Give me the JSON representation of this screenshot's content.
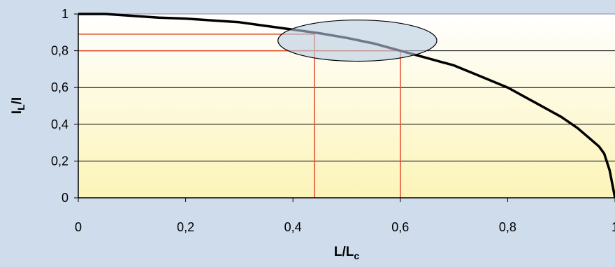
{
  "chart_data": {
    "type": "line",
    "title": "",
    "xlabel": {
      "main": "L/L",
      "sub": "c"
    },
    "ylabel": {
      "main": "I",
      "sub": "L",
      "suffix": "/I"
    },
    "xlim": [
      0,
      1
    ],
    "ylim": [
      0,
      1
    ],
    "x_ticks": [
      "0",
      "0,2",
      "0,4",
      "0,6",
      "0,8",
      "1"
    ],
    "y_ticks": [
      "0",
      "0,2",
      "0,4",
      "0,6",
      "0,8",
      "1"
    ],
    "grid": "horizontal",
    "legend": "none",
    "series": [
      {
        "x": [
          0,
          0.05,
          0.1,
          0.15,
          0.2,
          0.25,
          0.3,
          0.35,
          0.4,
          0.45,
          0.5,
          0.55,
          0.6,
          0.65,
          0.7,
          0.75,
          0.8,
          0.85,
          0.9,
          0.93,
          0.95,
          0.97,
          0.98,
          0.99,
          1.0
        ],
        "y": [
          1.0,
          1.0,
          0.99,
          0.98,
          0.975,
          0.965,
          0.955,
          0.935,
          0.915,
          0.895,
          0.87,
          0.84,
          0.8,
          0.76,
          0.72,
          0.66,
          0.6,
          0.52,
          0.44,
          0.38,
          0.33,
          0.28,
          0.24,
          0.15,
          0.0
        ],
        "color": "#000000"
      }
    ],
    "reference_lines": [
      {
        "x": 0.44,
        "y": 0.89,
        "color": "#e04a2a"
      },
      {
        "x": 0.6,
        "y": 0.8,
        "color": "#e04a2a"
      }
    ],
    "highlight_ellipse": {
      "cx": 0.52,
      "cy": 0.855,
      "rx": 0.148,
      "ry": 0.112,
      "color": "#b8cce2"
    }
  }
}
